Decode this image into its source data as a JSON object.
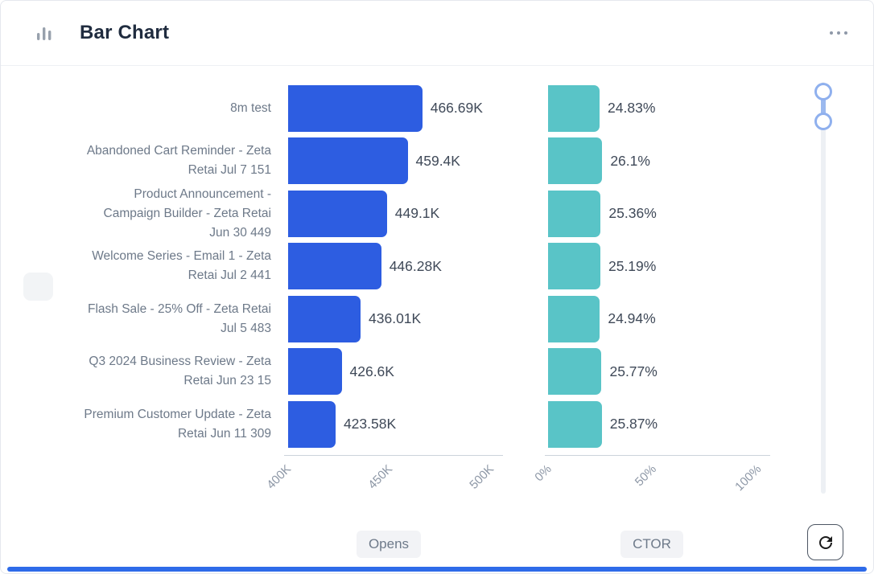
{
  "header": {
    "title": "Bar Chart"
  },
  "icons": {
    "header": "bar-chart-icon",
    "menu": "ellipsis-icon",
    "refresh": "refresh-icon"
  },
  "chart_data": {
    "type": "bar",
    "orientation": "horizontal",
    "title": "Bar Chart",
    "grid": false,
    "legend_position": "bottom",
    "categories": [
      "8m test",
      "Abandoned Cart Reminder - Zeta Retai Jul 7 151",
      "Product Announcement - Campaign Builder - Zeta Retai Jun 30 449",
      "Welcome Series - Email 1 - Zeta Retai Jul 2 441",
      "Flash Sale - 25% Off - Zeta Retai Jul 5 483",
      "Q3 2024 Business Review - Zeta Retai Jun 23 15",
      "Premium Customer Update - Zeta Retai Jun 11 309"
    ],
    "series": [
      {
        "name": "Opens",
        "color": "#2d5de1",
        "axis_min": 400000,
        "axis_max": 500000,
        "axis_ticks": [
          "400K",
          "450K",
          "500K"
        ],
        "values": [
          466690,
          459400,
          449100,
          446280,
          436010,
          426600,
          423580
        ],
        "labels": [
          "466.69K",
          "459.4K",
          "449.1K",
          "446.28K",
          "436.01K",
          "426.6K",
          "423.58K"
        ]
      },
      {
        "name": "CTOR",
        "color": "#59c4c7",
        "axis_min": 0,
        "axis_max": 100,
        "axis_ticks": [
          "0%",
          "50%",
          "100%"
        ],
        "values": [
          24.83,
          26.1,
          25.36,
          25.19,
          24.94,
          25.77,
          25.87
        ],
        "labels": [
          "24.83%",
          "26.1%",
          "25.36%",
          "25.19%",
          "24.94%",
          "25.77%",
          "25.87%"
        ]
      }
    ]
  }
}
